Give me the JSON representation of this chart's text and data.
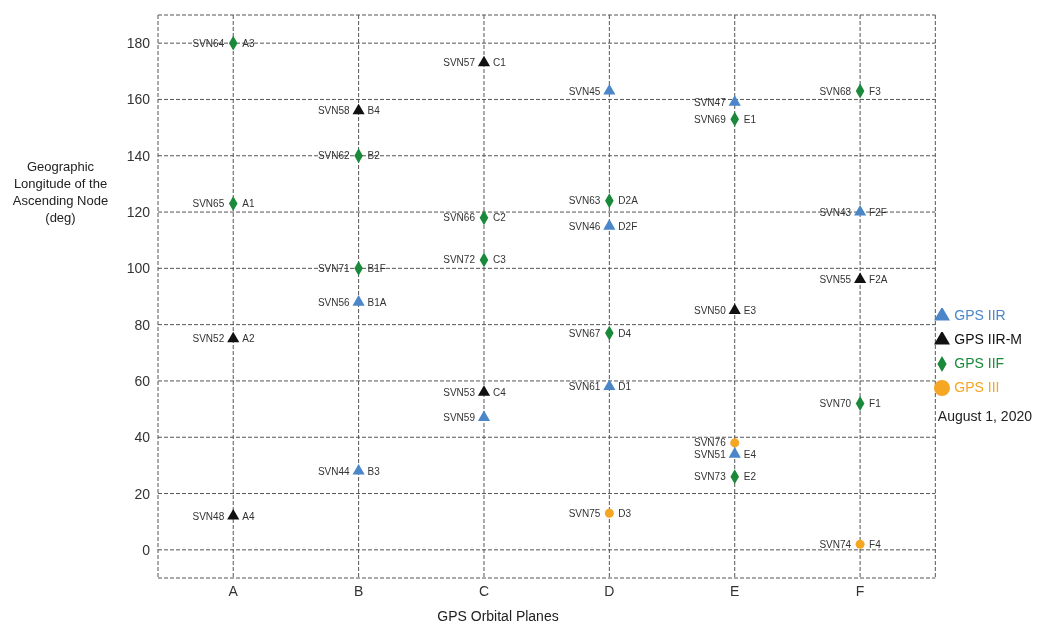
{
  "chart_data": {
    "type": "scatter",
    "xlabel": "GPS Orbital Planes",
    "ylabel": "Geographic Longitude of the Ascending Node (deg)",
    "categories": [
      "A",
      "B",
      "C",
      "D",
      "E",
      "F"
    ],
    "ylim": [
      -10,
      190
    ],
    "yticks": [
      0,
      20,
      40,
      60,
      80,
      100,
      120,
      140,
      160,
      180
    ],
    "grid": true,
    "legend": "right",
    "series": [
      {
        "name": "GPS IIR",
        "color": "#4a86c8",
        "marker": "triangle",
        "x": [
          "D",
          "E",
          "F",
          "D",
          "B",
          "D",
          "C",
          "E",
          "B"
        ],
        "values": [
          163,
          159,
          120,
          115,
          88,
          58,
          47,
          34,
          28
        ]
      },
      {
        "name": "GPS IIR-M",
        "color": "#111111",
        "marker": "triangle",
        "x": [
          "C",
          "B",
          "F",
          "E",
          "A",
          "C",
          "A"
        ],
        "values": [
          173,
          156,
          96,
          85,
          75,
          56,
          12
        ]
      },
      {
        "name": "GPS IIF",
        "color": "#1a8a3a",
        "marker": "diamond",
        "x": [
          "A",
          "F",
          "E",
          "B",
          "D",
          "A",
          "C",
          "C",
          "B",
          "D",
          "F",
          "E"
        ],
        "values": [
          180,
          163,
          153,
          140,
          124,
          123,
          118,
          103,
          100,
          77,
          52,
          26
        ]
      },
      {
        "name": "GPS III",
        "color": "#f5a623",
        "marker": "circle",
        "x": [
          "E",
          "D",
          "F"
        ],
        "values": [
          38,
          13,
          2
        ]
      }
    ],
    "annotations": [
      {
        "text": "SVN64",
        "x": "A",
        "y": 180
      },
      {
        "text": "A3",
        "x": "A",
        "y": 180
      },
      {
        "text": "SVN57",
        "x": "C",
        "y": 173
      },
      {
        "text": "C1",
        "x": "C",
        "y": 173
      },
      {
        "text": "SVN45",
        "x": "D",
        "y": 163
      },
      {
        "text": "SVN68",
        "x": "F",
        "y": 163
      },
      {
        "text": "F3",
        "x": "F",
        "y": 163
      },
      {
        "text": "SVN47",
        "x": "E",
        "y": 159
      },
      {
        "text": "SVN58",
        "x": "B",
        "y": 156
      },
      {
        "text": "B4",
        "x": "B",
        "y": 156
      },
      {
        "text": "SVN69",
        "x": "E",
        "y": 153
      },
      {
        "text": "E1",
        "x": "E",
        "y": 153
      },
      {
        "text": "SVN62",
        "x": "B",
        "y": 140
      },
      {
        "text": "B2",
        "x": "B",
        "y": 140
      },
      {
        "text": "SVN63",
        "x": "D",
        "y": 124
      },
      {
        "text": "D2A",
        "x": "D",
        "y": 124
      },
      {
        "text": "SVN65",
        "x": "A",
        "y": 123
      },
      {
        "text": "A1",
        "x": "A",
        "y": 123
      },
      {
        "text": "SVN43",
        "x": "F",
        "y": 120
      },
      {
        "text": "F2F",
        "x": "F",
        "y": 120
      },
      {
        "text": "SVN66",
        "x": "C",
        "y": 118
      },
      {
        "text": "C2",
        "x": "C",
        "y": 118
      },
      {
        "text": "SVN46",
        "x": "D",
        "y": 115
      },
      {
        "text": "D2F",
        "x": "D",
        "y": 115
      },
      {
        "text": "SVN72",
        "x": "C",
        "y": 103
      },
      {
        "text": "C3",
        "x": "C",
        "y": 103
      },
      {
        "text": "SVN71",
        "x": "B",
        "y": 100
      },
      {
        "text": "B1F",
        "x": "B",
        "y": 100
      },
      {
        "text": "SVN55",
        "x": "F",
        "y": 96
      },
      {
        "text": "F2A",
        "x": "F",
        "y": 96
      },
      {
        "text": "SVN56",
        "x": "B",
        "y": 88
      },
      {
        "text": "B1A",
        "x": "B",
        "y": 88
      },
      {
        "text": "SVN50",
        "x": "E",
        "y": 85
      },
      {
        "text": "E3",
        "x": "E",
        "y": 85
      },
      {
        "text": "SVN67",
        "x": "D",
        "y": 77
      },
      {
        "text": "D4",
        "x": "D",
        "y": 77
      },
      {
        "text": "SVN52",
        "x": "A",
        "y": 75
      },
      {
        "text": "A2",
        "x": "A",
        "y": 75
      },
      {
        "text": "SVN61",
        "x": "D",
        "y": 58
      },
      {
        "text": "D1",
        "x": "D",
        "y": 58
      },
      {
        "text": "SVN53",
        "x": "C",
        "y": 56
      },
      {
        "text": "C4",
        "x": "C",
        "y": 56
      },
      {
        "text": "SVN70",
        "x": "F",
        "y": 52
      },
      {
        "text": "F1",
        "x": "F",
        "y": 52
      },
      {
        "text": "SVN59",
        "x": "C",
        "y": 47
      },
      {
        "text": "SVN76",
        "x": "E",
        "y": 38
      },
      {
        "text": "SVN51",
        "x": "E",
        "y": 34
      },
      {
        "text": "E4",
        "x": "E",
        "y": 34
      },
      {
        "text": "SVN44",
        "x": "B",
        "y": 28
      },
      {
        "text": "B3",
        "x": "B",
        "y": 28
      },
      {
        "text": "SVN73",
        "x": "E",
        "y": 26
      },
      {
        "text": "E2",
        "x": "E",
        "y": 26
      },
      {
        "text": "SVN75",
        "x": "D",
        "y": 13
      },
      {
        "text": "D3",
        "x": "D",
        "y": 13
      },
      {
        "text": "SVN48",
        "x": "A",
        "y": 12
      },
      {
        "text": "A4",
        "x": "A",
        "y": 12
      },
      {
        "text": "SVN74",
        "x": "F",
        "y": 2
      },
      {
        "text": "F4",
        "x": "F",
        "y": 2
      },
      "August 1, 2020"
    ]
  }
}
